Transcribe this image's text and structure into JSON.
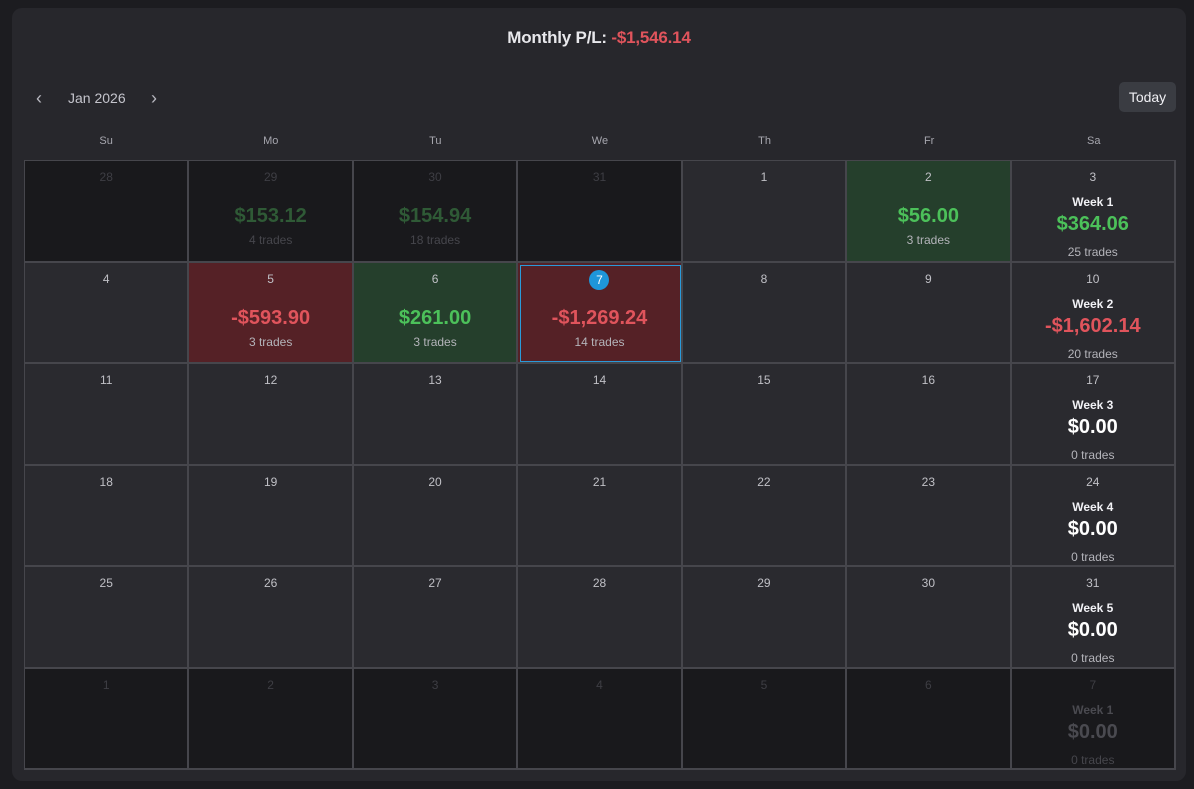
{
  "header": {
    "monthly_label": "Monthly P/L:",
    "monthly_value": "-$1,546.14"
  },
  "nav": {
    "prev_icon": "‹",
    "next_icon": "›",
    "month": "Jan 2026",
    "today_label": "Today"
  },
  "weekdays": [
    "Su",
    "Mo",
    "Tu",
    "We",
    "Th",
    "Fr",
    "Sa"
  ],
  "weeks": [
    {
      "days": [
        {
          "num": "28",
          "other": true
        },
        {
          "num": "29",
          "other": true,
          "amount": "$153.12",
          "trades": "4 trades",
          "kind": "pos"
        },
        {
          "num": "30",
          "other": true,
          "amount": "$154.94",
          "trades": "18 trades",
          "kind": "pos"
        },
        {
          "num": "31",
          "other": true
        },
        {
          "num": "1"
        },
        {
          "num": "2",
          "amount": "$56.00",
          "trades": "3 trades",
          "kind": "pos"
        },
        {
          "num": "3",
          "week": "Week 1",
          "amount": "$364.06",
          "trades": "25 trades",
          "kind": "pos"
        }
      ]
    },
    {
      "days": [
        {
          "num": "4"
        },
        {
          "num": "5",
          "amount": "-$593.90",
          "trades": "3 trades",
          "kind": "neg"
        },
        {
          "num": "6",
          "amount": "$261.00",
          "trades": "3 trades",
          "kind": "pos"
        },
        {
          "num": "7",
          "amount": "-$1,269.24",
          "trades": "14 trades",
          "kind": "neg",
          "today": true
        },
        {
          "num": "8"
        },
        {
          "num": "9"
        },
        {
          "num": "10",
          "week": "Week 2",
          "amount": "-$1,602.14",
          "trades": "20 trades",
          "kind": "neg"
        }
      ]
    },
    {
      "days": [
        {
          "num": "11"
        },
        {
          "num": "12"
        },
        {
          "num": "13"
        },
        {
          "num": "14"
        },
        {
          "num": "15"
        },
        {
          "num": "16"
        },
        {
          "num": "17",
          "week": "Week 3",
          "amount": "$0.00",
          "trades": "0 trades",
          "kind": "zero"
        }
      ]
    },
    {
      "days": [
        {
          "num": "18"
        },
        {
          "num": "19"
        },
        {
          "num": "20"
        },
        {
          "num": "21"
        },
        {
          "num": "22"
        },
        {
          "num": "23"
        },
        {
          "num": "24",
          "week": "Week 4",
          "amount": "$0.00",
          "trades": "0 trades",
          "kind": "zero"
        }
      ]
    },
    {
      "days": [
        {
          "num": "25"
        },
        {
          "num": "26"
        },
        {
          "num": "27"
        },
        {
          "num": "28"
        },
        {
          "num": "29"
        },
        {
          "num": "30"
        },
        {
          "num": "31",
          "week": "Week 5",
          "amount": "$0.00",
          "trades": "0 trades",
          "kind": "zero"
        }
      ]
    },
    {
      "days": [
        {
          "num": "1",
          "other": true
        },
        {
          "num": "2",
          "other": true
        },
        {
          "num": "3",
          "other": true
        },
        {
          "num": "4",
          "other": true
        },
        {
          "num": "5",
          "other": true
        },
        {
          "num": "6",
          "other": true
        },
        {
          "num": "7",
          "other": true,
          "week": "Week 1",
          "amount": "$0.00",
          "trades": "0 trades",
          "kind": "zero"
        }
      ]
    }
  ],
  "colors": {
    "positive": "#4cc15a",
    "negative": "#e0545c",
    "accent": "#1e96da"
  }
}
